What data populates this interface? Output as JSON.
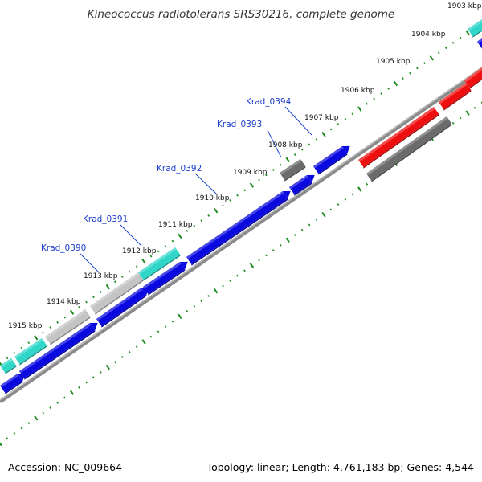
{
  "title": "Kineococcus radiotolerans SRS30216, complete genome",
  "footer": {
    "accession": "Accession: NC_009664",
    "summary": "Topology: linear; Length: 4,761,183 bp; Genes: 4,544"
  },
  "colors": {
    "forward_blue": "#0a0ae0",
    "gray": "#c4c4c4",
    "dark_gray": "#6b6b6b",
    "cyan": "#30d6c8",
    "red": "#ee1010",
    "backbone": "#8a8a8a",
    "ticks": "#1a8a1a",
    "label_blue": "#1d3fcc"
  },
  "kbp_labels": [
    "1903 kbp",
    "1904 kbp",
    "1905 kbp",
    "1906 kbp",
    "1907 kbp",
    "1908 kbp",
    "1909 kbp",
    "1910 kbp",
    "1911 kbp",
    "1912 kbp",
    "1913 kbp",
    "1914 kbp",
    "1915 kbp"
  ],
  "gene_labels": [
    "Krad_0394",
    "Krad_0393",
    "Krad_0392",
    "Krad_0391",
    "Krad_0390"
  ]
}
